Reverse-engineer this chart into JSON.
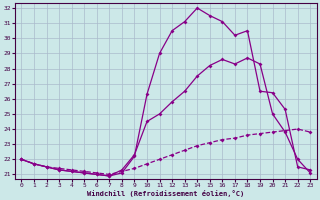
{
  "xlabel": "Windchill (Refroidissement éolien,°C)",
  "bg_color": "#cce8e8",
  "line_color": "#880088",
  "grid_color": "#aabbcc",
  "xlim": [
    -0.5,
    23.5
  ],
  "ylim": [
    20.7,
    32.3
  ],
  "yticks": [
    21,
    22,
    23,
    24,
    25,
    26,
    27,
    28,
    29,
    30,
    31,
    32
  ],
  "xticks": [
    0,
    1,
    2,
    3,
    4,
    5,
    6,
    7,
    8,
    9,
    10,
    11,
    12,
    13,
    14,
    15,
    16,
    17,
    18,
    19,
    20,
    21,
    22,
    23
  ],
  "series1_x": [
    0,
    1,
    2,
    3,
    4,
    5,
    6,
    7,
    8,
    9,
    10,
    11,
    12,
    13,
    14,
    15,
    16,
    17,
    18,
    19,
    20,
    21,
    22,
    23
  ],
  "series1_y": [
    22.0,
    21.7,
    21.5,
    21.3,
    21.2,
    21.1,
    21.0,
    20.9,
    21.1,
    22.2,
    26.3,
    29.0,
    30.5,
    31.1,
    32.0,
    31.5,
    31.1,
    30.2,
    30.5,
    26.5,
    26.4,
    25.3,
    21.5,
    21.3
  ],
  "series2_x": [
    0,
    1,
    2,
    3,
    4,
    5,
    6,
    7,
    8,
    9,
    10,
    11,
    12,
    13,
    14,
    15,
    16,
    17,
    18,
    19,
    20,
    21,
    22,
    23
  ],
  "series2_y": [
    22.0,
    21.7,
    21.5,
    21.3,
    21.2,
    21.1,
    21.0,
    20.9,
    21.3,
    22.3,
    24.5,
    25.0,
    25.8,
    26.5,
    27.5,
    28.2,
    28.6,
    28.3,
    28.7,
    28.3,
    25.0,
    23.8,
    22.0,
    21.1
  ],
  "series3_x": [
    0,
    1,
    2,
    3,
    4,
    5,
    6,
    7,
    8,
    9,
    10,
    11,
    12,
    13,
    14,
    15,
    16,
    17,
    18,
    19,
    20,
    21,
    22,
    23
  ],
  "series3_y": [
    22.0,
    21.7,
    21.5,
    21.4,
    21.3,
    21.2,
    21.1,
    21.0,
    21.2,
    21.4,
    21.7,
    22.0,
    22.3,
    22.6,
    22.9,
    23.1,
    23.3,
    23.4,
    23.6,
    23.7,
    23.8,
    23.9,
    24.0,
    23.8
  ]
}
